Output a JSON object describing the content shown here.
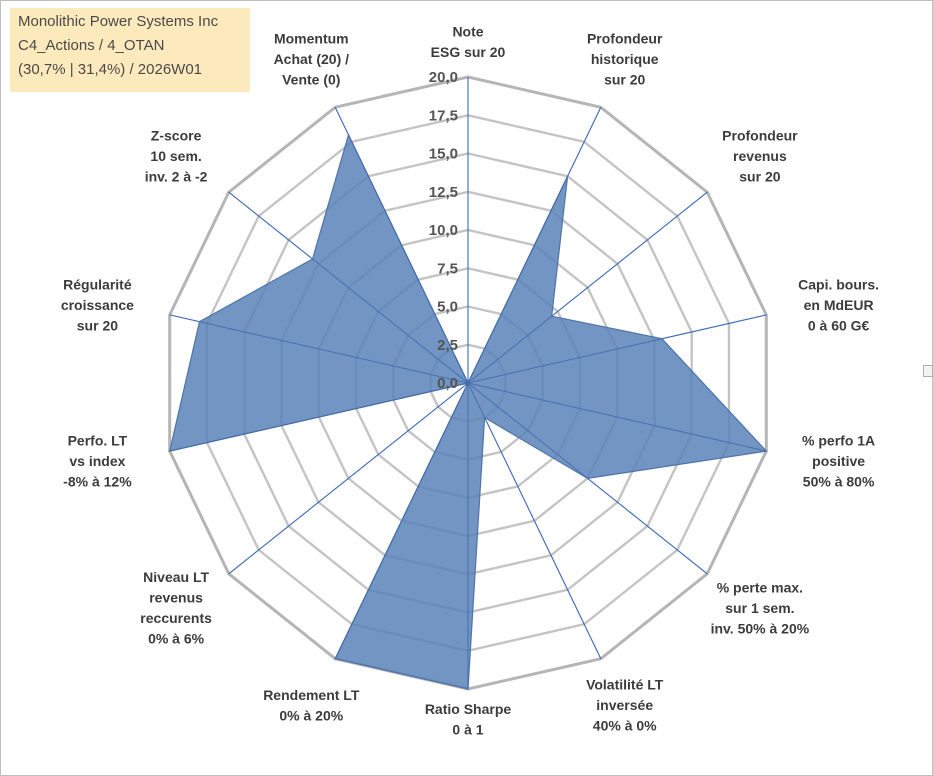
{
  "info": {
    "company": "Monolithic Power Systems Inc",
    "portfolio": "C4_Actions / 4_OTAN",
    "stats": "(30,7% | 31,4%) / 2026W01"
  },
  "chart_data": {
    "type": "radar",
    "title": "",
    "r_range": [
      0,
      20
    ],
    "r_ticks": [
      "0,0",
      "2,5",
      "5,0",
      "7,5",
      "10,0",
      "12,5",
      "15,0",
      "17,5",
      "20,0"
    ],
    "grid": true,
    "fill_color": "#5b83b8",
    "line_color": "#4f74a8",
    "grid_color": "#c0c0c0",
    "axes": [
      {
        "label": [
          "Note",
          "ESG sur 20"
        ],
        "value": 0
      },
      {
        "label": [
          "Profondeur",
          "historique",
          "sur 20"
        ],
        "value": 15
      },
      {
        "label": [
          "Profondeur",
          "revenus",
          "sur 20"
        ],
        "value": 7
      },
      {
        "label": [
          "Capi. bours.",
          "en MdEUR",
          "0 à 60 G€"
        ],
        "value": 13
      },
      {
        "label": [
          "% perfo 1A",
          "positive",
          "50% à 80%"
        ],
        "value": 20
      },
      {
        "label": [
          "% perte max.",
          "sur 1 sem.",
          "inv. 50% à 20%"
        ],
        "value": 10
      },
      {
        "label": [
          "Volatilité LT",
          "inversée",
          "40% à 0%"
        ],
        "value": 2.5
      },
      {
        "label": [
          "Ratio Sharpe",
          "0 à 1"
        ],
        "value": 20
      },
      {
        "label": [
          "Rendement LT",
          "0% à 20%"
        ],
        "value": 20
      },
      {
        "label": [
          "Niveau LT",
          "revenus",
          "reccurents",
          "0% à 6%"
        ],
        "value": 0
      },
      {
        "label": [
          "Perfo. LT",
          "vs index",
          "-8% à 12%"
        ],
        "value": 20
      },
      {
        "label": [
          "Régularité",
          "croissance",
          "sur 20"
        ],
        "value": 18
      },
      {
        "label": [
          "Z-score",
          "10 sem.",
          "inv. 2 à -2"
        ],
        "value": 13
      },
      {
        "label": [
          "Momentum",
          "Achat (20) /",
          "Vente (0)"
        ],
        "value": 18
      }
    ]
  }
}
